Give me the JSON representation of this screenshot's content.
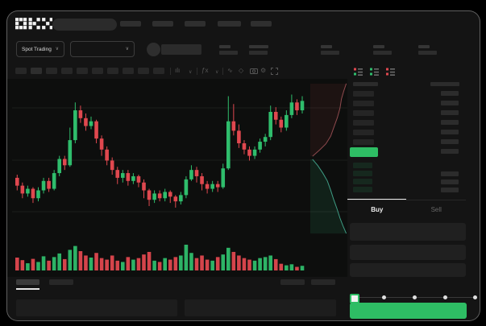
{
  "app": {
    "logo_text": "OKX"
  },
  "colors": {
    "up": "#2fbd6c",
    "down": "#e0484f",
    "accent_green": "#2ebd64",
    "depth_ask_line": "#8f4a4e",
    "depth_bid_line": "#3e9c84",
    "depth_ask_fill": "rgba(180,70,70,0.10)",
    "depth_bid_fill": "rgba(50,170,115,0.12)",
    "grid": "#1c1e1c"
  },
  "subheader": {
    "market_type_label": "Spot Trading",
    "chevron_glyph": "∨"
  },
  "toolbar": {
    "glyphs": {
      "interval": "ılı",
      "chevron": "∨",
      "indicator": "ƒx",
      "wave": "∿",
      "diamond": "◇",
      "gear": "⚙"
    }
  },
  "orderbook": {
    "view_modes": [
      "combined",
      "bids",
      "asks"
    ]
  },
  "trade": {
    "buy_tab_label": "Buy",
    "sell_tab_label": "Sell"
  },
  "chart_data": {
    "type": "candlestick",
    "title": "",
    "xlabel": "",
    "ylabel": "",
    "x_axis_labels": [],
    "y_axis_labels": [],
    "grid": "horizontal-faint",
    "price_scale": [
      0,
      100
    ],
    "candles": [
      {
        "o": 38,
        "h": 40,
        "l": 30,
        "c": 33
      },
      {
        "o": 33,
        "h": 35,
        "l": 25,
        "c": 28
      },
      {
        "o": 28,
        "h": 33,
        "l": 26,
        "c": 31
      },
      {
        "o": 31,
        "h": 32,
        "l": 22,
        "c": 25
      },
      {
        "o": 25,
        "h": 32,
        "l": 23,
        "c": 30
      },
      {
        "o": 30,
        "h": 38,
        "l": 28,
        "c": 36
      },
      {
        "o": 36,
        "h": 38,
        "l": 29,
        "c": 31
      },
      {
        "o": 31,
        "h": 43,
        "l": 30,
        "c": 41
      },
      {
        "o": 41,
        "h": 52,
        "l": 39,
        "c": 50
      },
      {
        "o": 50,
        "h": 52,
        "l": 43,
        "c": 46
      },
      {
        "o": 46,
        "h": 70,
        "l": 45,
        "c": 62
      },
      {
        "o": 62,
        "h": 86,
        "l": 60,
        "c": 81
      },
      {
        "o": 81,
        "h": 84,
        "l": 73,
        "c": 76
      },
      {
        "o": 76,
        "h": 79,
        "l": 68,
        "c": 71
      },
      {
        "o": 71,
        "h": 77,
        "l": 69,
        "c": 74
      },
      {
        "o": 74,
        "h": 75,
        "l": 60,
        "c": 63
      },
      {
        "o": 63,
        "h": 65,
        "l": 52,
        "c": 56
      },
      {
        "o": 56,
        "h": 58,
        "l": 46,
        "c": 49
      },
      {
        "o": 49,
        "h": 51,
        "l": 40,
        "c": 43
      },
      {
        "o": 43,
        "h": 45,
        "l": 34,
        "c": 38
      },
      {
        "o": 38,
        "h": 43,
        "l": 35,
        "c": 41
      },
      {
        "o": 41,
        "h": 43,
        "l": 33,
        "c": 36
      },
      {
        "o": 36,
        "h": 41,
        "l": 34,
        "c": 39
      },
      {
        "o": 39,
        "h": 40,
        "l": 32,
        "c": 35
      },
      {
        "o": 35,
        "h": 37,
        "l": 25,
        "c": 30
      },
      {
        "o": 30,
        "h": 31,
        "l": 20,
        "c": 24
      },
      {
        "o": 24,
        "h": 30,
        "l": 22,
        "c": 28
      },
      {
        "o": 28,
        "h": 30,
        "l": 23,
        "c": 25
      },
      {
        "o": 25,
        "h": 31,
        "l": 23,
        "c": 29
      },
      {
        "o": 29,
        "h": 30,
        "l": 22,
        "c": 26
      },
      {
        "o": 26,
        "h": 27,
        "l": 19,
        "c": 23
      },
      {
        "o": 23,
        "h": 29,
        "l": 21,
        "c": 27
      },
      {
        "o": 27,
        "h": 39,
        "l": 25,
        "c": 37
      },
      {
        "o": 37,
        "h": 46,
        "l": 36,
        "c": 43
      },
      {
        "o": 43,
        "h": 45,
        "l": 35,
        "c": 39
      },
      {
        "o": 39,
        "h": 41,
        "l": 30,
        "c": 34
      },
      {
        "o": 34,
        "h": 36,
        "l": 28,
        "c": 31
      },
      {
        "o": 31,
        "h": 36,
        "l": 29,
        "c": 34
      },
      {
        "o": 34,
        "h": 36,
        "l": 29,
        "c": 32
      },
      {
        "o": 32,
        "h": 47,
        "l": 31,
        "c": 44
      },
      {
        "o": 44,
        "h": 90,
        "l": 43,
        "c": 74
      },
      {
        "o": 74,
        "h": 85,
        "l": 65,
        "c": 68
      },
      {
        "o": 68,
        "h": 72,
        "l": 57,
        "c": 60
      },
      {
        "o": 60,
        "h": 62,
        "l": 53,
        "c": 56
      },
      {
        "o": 56,
        "h": 58,
        "l": 49,
        "c": 52
      },
      {
        "o": 52,
        "h": 58,
        "l": 50,
        "c": 56
      },
      {
        "o": 56,
        "h": 63,
        "l": 54,
        "c": 61
      },
      {
        "o": 61,
        "h": 66,
        "l": 58,
        "c": 64
      },
      {
        "o": 64,
        "h": 84,
        "l": 62,
        "c": 80
      },
      {
        "o": 80,
        "h": 83,
        "l": 72,
        "c": 75
      },
      {
        "o": 75,
        "h": 77,
        "l": 67,
        "c": 70
      },
      {
        "o": 70,
        "h": 81,
        "l": 68,
        "c": 78
      },
      {
        "o": 78,
        "h": 91,
        "l": 76,
        "c": 86
      },
      {
        "o": 86,
        "h": 88,
        "l": 78,
        "c": 81
      },
      {
        "o": 81,
        "h": 90,
        "l": 79,
        "c": 87
      }
    ],
    "volume": [
      50,
      40,
      28,
      45,
      33,
      55,
      38,
      52,
      66,
      44,
      80,
      95,
      75,
      58,
      50,
      68,
      48,
      42,
      58,
      38,
      33,
      52,
      42,
      48,
      62,
      72,
      38,
      33,
      48,
      42,
      52,
      58,
      100,
      68,
      48,
      58,
      42,
      38,
      52,
      62,
      88,
      72,
      58,
      48,
      42,
      38,
      48,
      52,
      58,
      44,
      26,
      20,
      24,
      14,
      18
    ],
    "depth": {
      "asks_line": [
        [
          0.97,
          0.02
        ],
        [
          0.9,
          0.07
        ],
        [
          0.84,
          0.12
        ],
        [
          0.8,
          0.18
        ],
        [
          0.73,
          0.24
        ],
        [
          0.64,
          0.3
        ],
        [
          0.55,
          0.36
        ],
        [
          0.42,
          0.41
        ],
        [
          0.25,
          0.45
        ],
        [
          0.06,
          0.49
        ]
      ],
      "bids_line": [
        [
          0.06,
          0.51
        ],
        [
          0.2,
          0.55
        ],
        [
          0.34,
          0.6
        ],
        [
          0.46,
          0.65
        ],
        [
          0.55,
          0.71
        ],
        [
          0.63,
          0.77
        ],
        [
          0.72,
          0.83
        ],
        [
          0.8,
          0.89
        ],
        [
          0.88,
          0.94
        ],
        [
          0.97,
          0.99
        ]
      ]
    }
  }
}
